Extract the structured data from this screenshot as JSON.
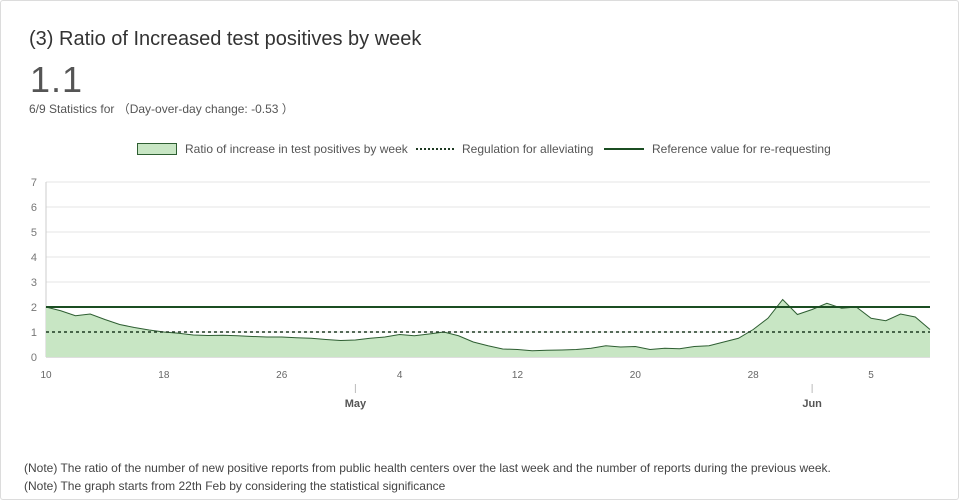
{
  "header": {
    "title": "(3) Ratio of Increased test positives by week",
    "value": "1.1",
    "subline": "6/9 Statistics for （Day-over-day change: -0.53 ）"
  },
  "legend": {
    "area_label": "Ratio of increase in test positives by week",
    "dotted_label": "Regulation for alleviating",
    "solid_label": "Reference value for re-requesting"
  },
  "notes": [
    "(Note) The ratio of the number of new positive reports from public health centers over the last week and the number of reports during the previous week.",
    "(Note) The graph starts from 22th Feb by considering the statistical significance"
  ],
  "colors": {
    "area_fill": "#c8e6c4",
    "area_line": "#2e5e32",
    "reference_line": "#1b4d22",
    "regulation_line": "#1e3a22",
    "grid": "#e6e6e6"
  },
  "chart_data": {
    "type": "area",
    "title": "(3) Ratio of Increased test positives by week",
    "xlabel": "",
    "ylabel": "",
    "ylim": [
      0,
      7
    ],
    "y_ticks": [
      "0",
      "1",
      "2",
      "3",
      "4",
      "5",
      "6",
      "7"
    ],
    "x_start": "04-10",
    "x_end": "06-09",
    "x_ticks": [
      {
        "date": "04-10",
        "label": "10"
      },
      {
        "date": "04-18",
        "label": "18"
      },
      {
        "date": "04-26",
        "label": "26"
      },
      {
        "date": "05-04",
        "label": "4"
      },
      {
        "date": "05-12",
        "label": "12"
      },
      {
        "date": "05-20",
        "label": "20"
      },
      {
        "date": "05-28",
        "label": "28"
      },
      {
        "date": "06-05",
        "label": "5"
      }
    ],
    "month_labels": [
      {
        "date": "05-01",
        "label": "May"
      },
      {
        "date": "06-01",
        "label": "Jun"
      }
    ],
    "series": [
      {
        "name": "Ratio of increase in test positives by week",
        "x": [
          "04-10",
          "04-11",
          "04-12",
          "04-13",
          "04-14",
          "04-15",
          "04-16",
          "04-17",
          "04-18",
          "04-19",
          "04-20",
          "04-21",
          "04-22",
          "04-23",
          "04-24",
          "04-25",
          "04-26",
          "04-27",
          "04-28",
          "04-29",
          "04-30",
          "05-01",
          "05-02",
          "05-03",
          "05-04",
          "05-05",
          "05-06",
          "05-07",
          "05-08",
          "05-09",
          "05-10",
          "05-11",
          "05-12",
          "05-13",
          "05-14",
          "05-15",
          "05-16",
          "05-17",
          "05-18",
          "05-19",
          "05-20",
          "05-21",
          "05-22",
          "05-23",
          "05-24",
          "05-25",
          "05-26",
          "05-27",
          "05-28",
          "05-29",
          "05-30",
          "05-31",
          "06-01",
          "06-02",
          "06-03",
          "06-04",
          "06-05",
          "06-06",
          "06-07",
          "06-08",
          "06-09"
        ],
        "values": [
          2.0,
          1.85,
          1.65,
          1.72,
          1.5,
          1.3,
          1.18,
          1.08,
          1.0,
          0.95,
          0.88,
          0.86,
          0.87,
          0.85,
          0.82,
          0.8,
          0.8,
          0.77,
          0.75,
          0.7,
          0.66,
          0.68,
          0.75,
          0.8,
          0.9,
          0.85,
          0.92,
          1.0,
          0.85,
          0.6,
          0.45,
          0.32,
          0.3,
          0.25,
          0.27,
          0.28,
          0.3,
          0.35,
          0.45,
          0.4,
          0.42,
          0.3,
          0.35,
          0.33,
          0.42,
          0.45,
          0.6,
          0.75,
          1.1,
          1.55,
          2.3,
          1.7,
          1.9,
          2.15,
          1.95,
          2.0,
          1.55,
          1.45,
          1.72,
          1.6,
          1.1
        ]
      },
      {
        "name": "Regulation for alleviating",
        "constant": 1
      },
      {
        "name": "Reference value for re-requesting",
        "constant": 2
      }
    ]
  }
}
